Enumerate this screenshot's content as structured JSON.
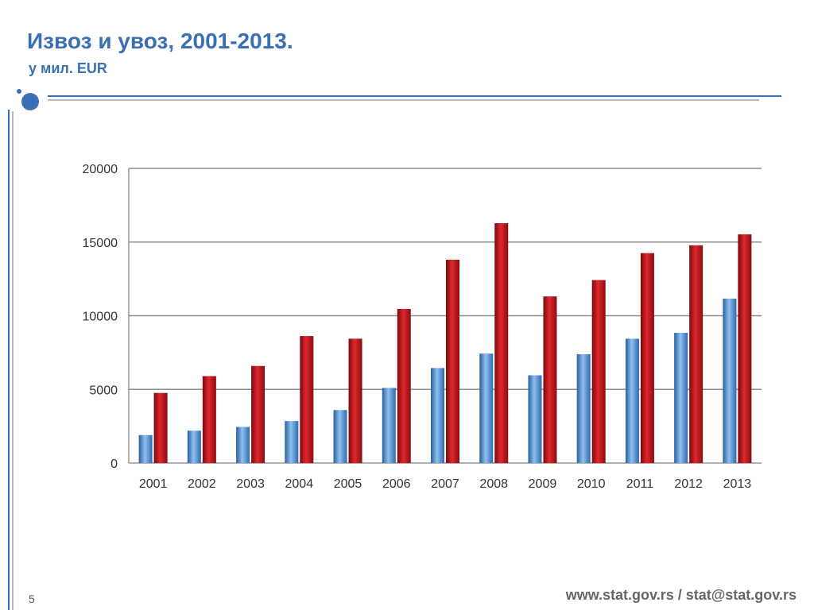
{
  "slide": {
    "title": "Извоз и увоз, 2001-2013.",
    "subtitle": "у мил. EUR",
    "footer": "www.stat.gov.rs / stat@stat.gov.rs",
    "page_number": "5",
    "accent_color": "#3a6fb5"
  },
  "chart_data": {
    "type": "bar",
    "categories": [
      "2001",
      "2002",
      "2003",
      "2004",
      "2005",
      "2006",
      "2007",
      "2008",
      "2009",
      "2010",
      "2011",
      "2012",
      "2013"
    ],
    "series": [
      {
        "color": "#4f8fd6",
        "values": [
          1900,
          2200,
          2450,
          2850,
          3600,
          5100,
          6450,
          7430,
          5960,
          7390,
          8440,
          8840,
          11160
        ]
      },
      {
        "color": "#c0151a",
        "values": [
          4760,
          5900,
          6590,
          8620,
          8440,
          10460,
          13800,
          16280,
          11310,
          12420,
          14250,
          14780,
          15520
        ]
      }
    ],
    "yticks": [
      "0",
      "5000",
      "10000",
      "15000",
      "20000"
    ],
    "ylim": [
      0,
      20000
    ],
    "grid": true,
    "legend": "none"
  }
}
